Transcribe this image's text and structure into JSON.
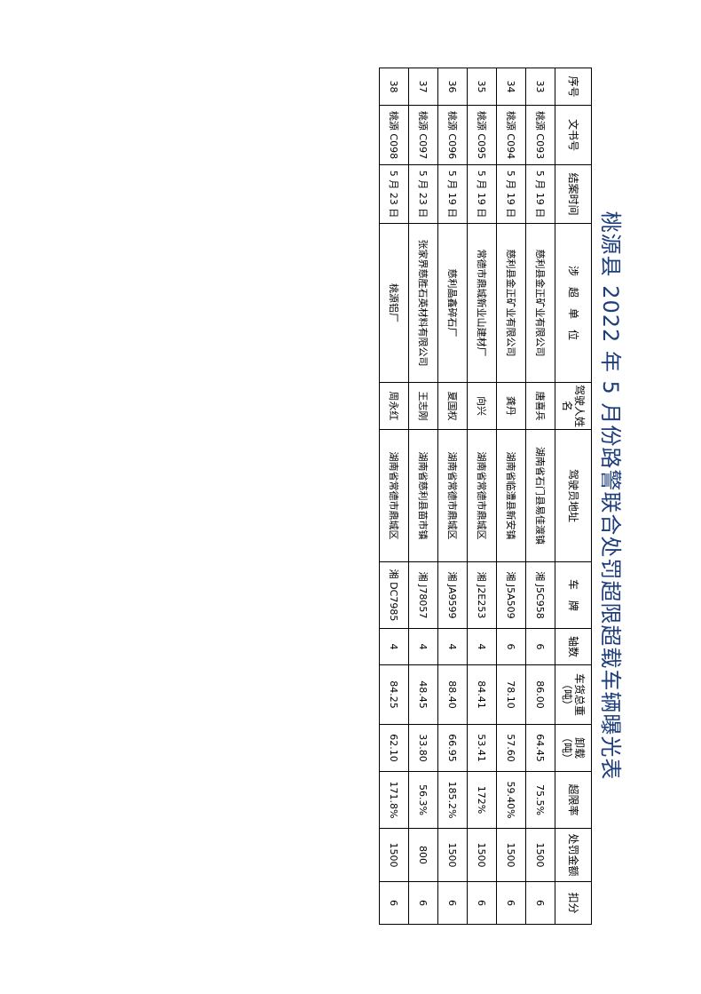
{
  "title": "桃源县 2022 年 5 月份路警联合处罚超限超载车辆曝光表",
  "headers": [
    "序号",
    "文书号",
    "结案时间",
    "涉　超　单　位",
    "驾驶人姓名",
    "驾驶员地址",
    "车　牌",
    "轴数",
    "车货总重（吨）",
    "卸载（吨）",
    "超限率",
    "处罚金额",
    "扣分"
  ],
  "rows": [
    [
      "33",
      "桃源 C093",
      "5 月 19 日",
      "慈利县金正矿业有限公司",
      "唐喜兵",
      "湖南省石门县易佳渡镇",
      "湘 J5C958",
      "6",
      "86.00",
      "64.45",
      "75.5%",
      "1500",
      "6"
    ],
    [
      "34",
      "桃源 C094",
      "5 月 19 日",
      "慈利县金正矿业有限公司",
      "龚丹",
      "湖南省临澧县新安镇",
      "湘 J5A509",
      "6",
      "78.10",
      "57.60",
      "59.40%",
      "1500",
      "6"
    ],
    [
      "35",
      "桃源 C095",
      "5 月 19 日",
      "常德市鼎城新业山建材厂",
      "向兴",
      "湖南省常德市鼎城区",
      "湘 J2E253",
      "4",
      "84.41",
      "53.41",
      "172%",
      "1500",
      "6"
    ],
    [
      "36",
      "桃源 C096",
      "5 月 19 日",
      "慈利晶鑫碎石厂",
      "夏国权",
      "湖南省常德市鼎城区",
      "湘 JA9599",
      "4",
      "88.40",
      "66.95",
      "185.2%",
      "1500",
      "6"
    ],
    [
      "37",
      "桃源 C097",
      "5 月 23 日",
      "张家界慈胜石英材料有限公司",
      "王志刚",
      "湖南省慈利县苗市镇",
      "湘 J78057",
      "4",
      "48.45",
      "33.80",
      "56.3%",
      "800",
      "6"
    ],
    [
      "38",
      "桃源 C098",
      "5 月 23 日",
      "桃源铝厂",
      "周永红",
      "湖南省常德市鼎城区",
      "湘 DC7985",
      "4",
      "84.25",
      "62.10",
      "171.8%",
      "1500",
      "6"
    ]
  ]
}
